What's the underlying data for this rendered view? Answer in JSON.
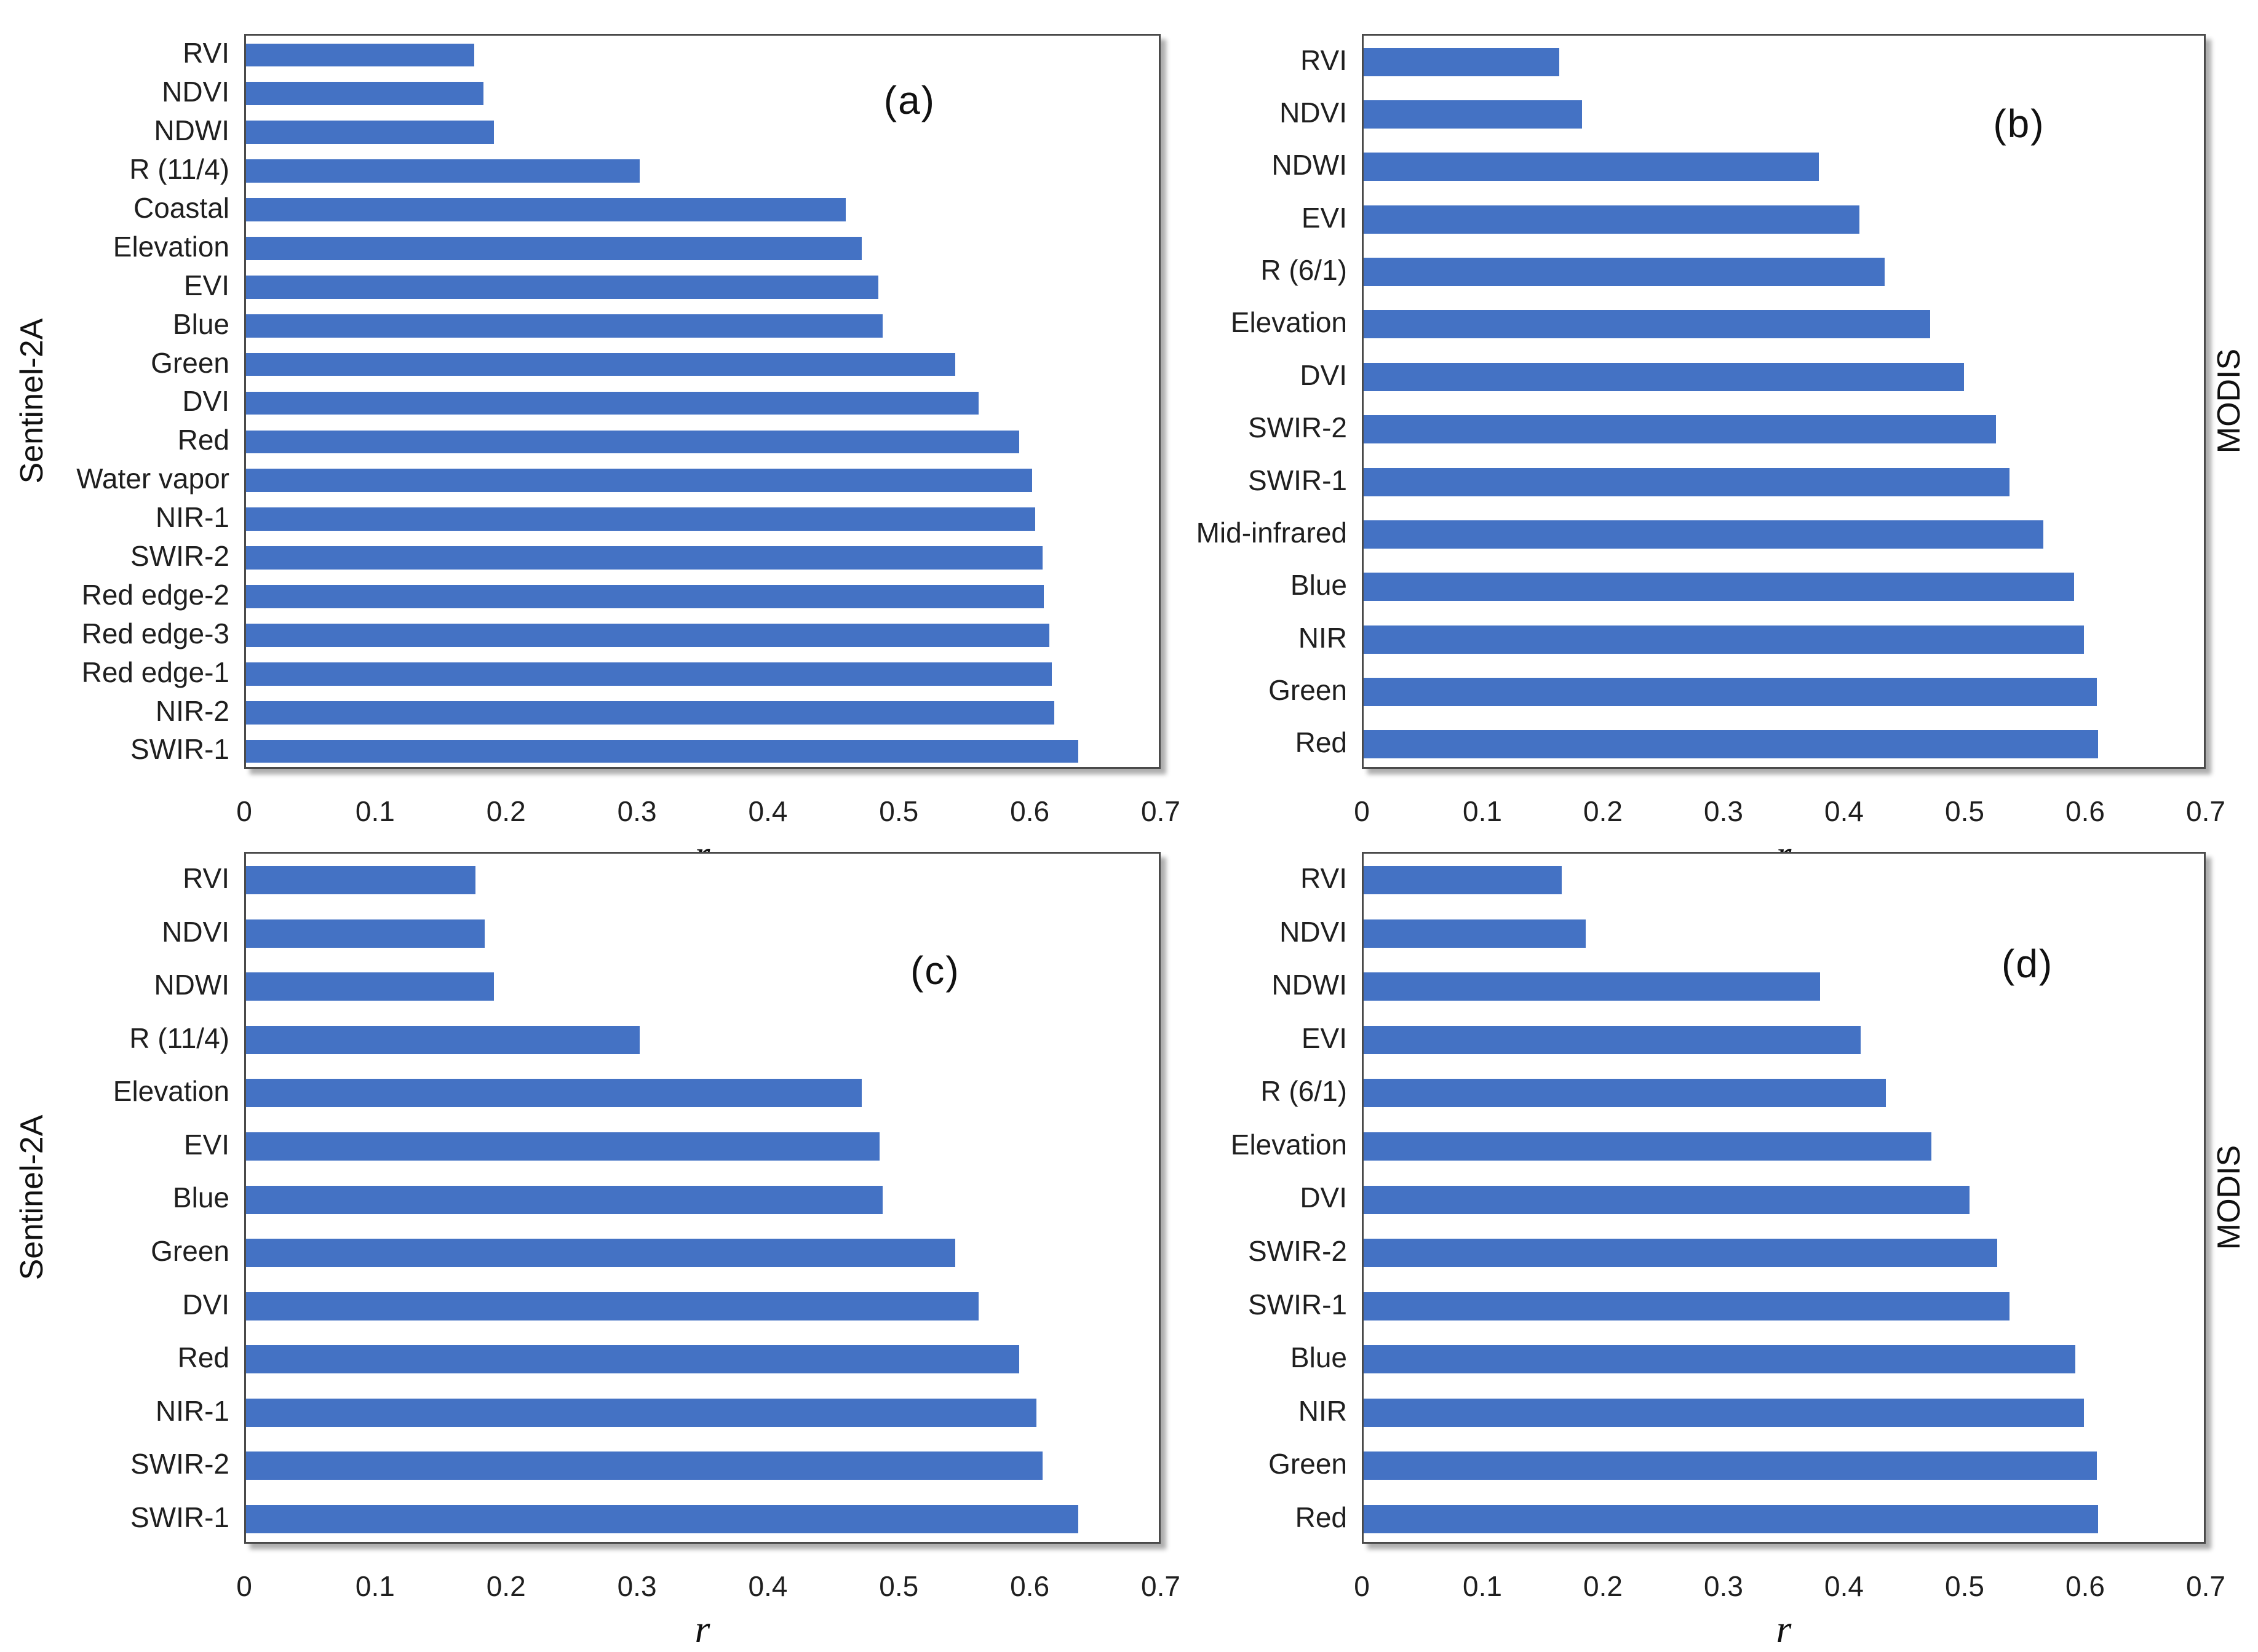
{
  "figure": {
    "bar_color": "#4472C4",
    "plot_border_color": "#4a4a4a",
    "background_color": "#ffffff"
  },
  "chart_data": [
    {
      "type": "bar",
      "orientation": "horizontal",
      "panel_letter": "(a)",
      "group_label": "Sentinel-2A",
      "group_label_side": "left",
      "xlabel": "r",
      "xlim": [
        0,
        0.7
      ],
      "x_ticks": [
        "0",
        "0.1",
        "0.2",
        "0.3",
        "0.4",
        "0.5",
        "0.6",
        "0.7"
      ],
      "grid": false,
      "categories": [
        "RVI",
        "NDVI",
        "NDWI",
        "R (11/4)",
        "Coastal",
        "Elevation",
        "EVI",
        "Blue",
        "Green",
        "DVI",
        "Red",
        "Water vapor",
        "NIR-1",
        "SWIR-2",
        "Red edge-2",
        "Red edge-3",
        "Red edge-1",
        "NIR-2",
        "SWIR-1"
      ],
      "values": [
        0.175,
        0.182,
        0.19,
        0.302,
        0.46,
        0.472,
        0.485,
        0.488,
        0.544,
        0.562,
        0.593,
        0.603,
        0.605,
        0.611,
        0.612,
        0.616,
        0.618,
        0.62,
        0.638
      ]
    },
    {
      "type": "bar",
      "orientation": "horizontal",
      "panel_letter": "(b)",
      "group_label": "MODIS",
      "group_label_side": "right",
      "xlabel": "r",
      "xlim": [
        0,
        0.7
      ],
      "x_ticks": [
        "0",
        "0.1",
        "0.2",
        "0.3",
        "0.4",
        "0.5",
        "0.6",
        "0.7"
      ],
      "grid": false,
      "categories": [
        "RVI",
        "NDVI",
        "NDWI",
        "EVI",
        "R (6/1)",
        "Elevation",
        "DVI",
        "SWIR-2",
        "SWIR-1",
        "Mid-infrared",
        "Blue",
        "NIR",
        "Green",
        "Red"
      ],
      "values": [
        0.163,
        0.182,
        0.379,
        0.413,
        0.434,
        0.472,
        0.5,
        0.527,
        0.538,
        0.566,
        0.592,
        0.6,
        0.611,
        0.612
      ]
    },
    {
      "type": "bar",
      "orientation": "horizontal",
      "panel_letter": "(c)",
      "group_label": "Sentinel-2A",
      "group_label_side": "left",
      "xlabel": "r",
      "xlim": [
        0,
        0.7
      ],
      "x_ticks": [
        "0",
        "0.1",
        "0.2",
        "0.3",
        "0.4",
        "0.5",
        "0.6",
        "0.7"
      ],
      "grid": false,
      "categories": [
        "RVI",
        "NDVI",
        "NDWI",
        "R (11/4)",
        "Elevation",
        "EVI",
        "Blue",
        "Green",
        "DVI",
        "Red",
        "NIR-1",
        "SWIR-2",
        "SWIR-1"
      ],
      "values": [
        0.176,
        0.183,
        0.19,
        0.302,
        0.472,
        0.486,
        0.488,
        0.544,
        0.562,
        0.593,
        0.606,
        0.611,
        0.638
      ]
    },
    {
      "type": "bar",
      "orientation": "horizontal",
      "panel_letter": "(d)",
      "group_label": "MODIS",
      "group_label_side": "right",
      "xlabel": "r",
      "xlim": [
        0,
        0.7
      ],
      "x_ticks": [
        "0",
        "0.1",
        "0.2",
        "0.3",
        "0.4",
        "0.5",
        "0.6",
        "0.7"
      ],
      "grid": false,
      "categories": [
        "RVI",
        "NDVI",
        "NDWI",
        "EVI",
        "R (6/1)",
        "Elevation",
        "DVI",
        "SWIR-2",
        "SWIR-1",
        "Blue",
        "NIR",
        "Green",
        "Red"
      ],
      "values": [
        0.165,
        0.185,
        0.38,
        0.414,
        0.435,
        0.473,
        0.505,
        0.528,
        0.538,
        0.593,
        0.6,
        0.611,
        0.612
      ]
    }
  ]
}
